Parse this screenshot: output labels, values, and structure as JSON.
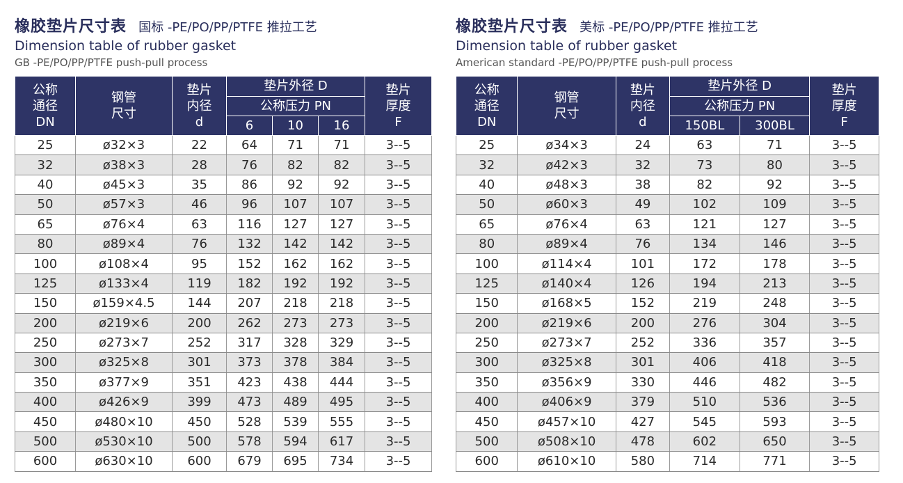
{
  "tables": [
    {
      "title": "橡胶垫片尺寸表",
      "subtitle": "国标 -PE/PO/PP/PTFE 推拉工艺",
      "title_en": "Dimension table of rubber gasket",
      "subtitle_en": "GB -PE/PO/PP/PTFE push-pull process",
      "headers": {
        "dn": [
          "公称",
          "通径",
          "DN"
        ],
        "pipe": [
          "钢管",
          "尺寸"
        ],
        "inner": [
          "垫片",
          "内径",
          "d"
        ],
        "outer": "垫片外径 D",
        "pressure": "公称压力 PN",
        "pressure_cols": [
          "6",
          "10",
          "16"
        ],
        "thick": [
          "垫片",
          "厚度",
          "F"
        ]
      },
      "rows": [
        [
          "25",
          "ø32×3",
          "22",
          "64",
          "71",
          "71",
          "3--5"
        ],
        [
          "32",
          "ø38×3",
          "28",
          "76",
          "82",
          "82",
          "3--5"
        ],
        [
          "40",
          "ø45×3",
          "35",
          "86",
          "92",
          "92",
          "3--5"
        ],
        [
          "50",
          "ø57×3",
          "46",
          "96",
          "107",
          "107",
          "3--5"
        ],
        [
          "65",
          "ø76×4",
          "63",
          "116",
          "127",
          "127",
          "3--5"
        ],
        [
          "80",
          "ø89×4",
          "76",
          "132",
          "142",
          "142",
          "3--5"
        ],
        [
          "100",
          "ø108×4",
          "95",
          "152",
          "162",
          "162",
          "3--5"
        ],
        [
          "125",
          "ø133×4",
          "119",
          "182",
          "192",
          "192",
          "3--5"
        ],
        [
          "150",
          "ø159×4.5",
          "144",
          "207",
          "218",
          "218",
          "3--5"
        ],
        [
          "200",
          "ø219×6",
          "200",
          "262",
          "273",
          "273",
          "3--5"
        ],
        [
          "250",
          "ø273×7",
          "252",
          "317",
          "328",
          "329",
          "3--5"
        ],
        [
          "300",
          "ø325×8",
          "301",
          "373",
          "378",
          "384",
          "3--5"
        ],
        [
          "350",
          "ø377×9",
          "351",
          "423",
          "438",
          "444",
          "3--5"
        ],
        [
          "400",
          "ø426×9",
          "399",
          "473",
          "489",
          "495",
          "3--5"
        ],
        [
          "450",
          "ø480×10",
          "450",
          "528",
          "539",
          "555",
          "3--5"
        ],
        [
          "500",
          "ø530×10",
          "500",
          "578",
          "594",
          "617",
          "3--5"
        ],
        [
          "600",
          "ø630×10",
          "600",
          "679",
          "695",
          "734",
          "3--5"
        ]
      ]
    },
    {
      "title": "橡胶垫片尺寸表",
      "subtitle": "美标 -PE/PO/PP/PTFE 推拉工艺",
      "title_en": "Dimension table of rubber gasket",
      "subtitle_en": "American standard -PE/PO/PP/PTFE push-pull process",
      "headers": {
        "dn": [
          "公称",
          "通径",
          "DN"
        ],
        "pipe": [
          "钢管",
          "尺寸"
        ],
        "inner": [
          "垫片",
          "内径",
          "d"
        ],
        "outer": "垫片外径 D",
        "pressure": "公称压力 PN",
        "pressure_cols": [
          "150BL",
          "300BL"
        ],
        "thick": [
          "垫片",
          "厚度",
          "F"
        ]
      },
      "rows": [
        [
          "25",
          "ø34×3",
          "24",
          "63",
          "71",
          "3--5"
        ],
        [
          "32",
          "ø42×3",
          "32",
          "73",
          "80",
          "3--5"
        ],
        [
          "40",
          "ø48×3",
          "38",
          "82",
          "92",
          "3--5"
        ],
        [
          "50",
          "ø60×3",
          "49",
          "102",
          "109",
          "3--5"
        ],
        [
          "65",
          "ø76×4",
          "63",
          "121",
          "127",
          "3--5"
        ],
        [
          "80",
          "ø89×4",
          "76",
          "134",
          "146",
          "3--5"
        ],
        [
          "100",
          "ø114×4",
          "101",
          "172",
          "178",
          "3--5"
        ],
        [
          "125",
          "ø140×4",
          "126",
          "194",
          "213",
          "3--5"
        ],
        [
          "150",
          "ø168×5",
          "152",
          "219",
          "248",
          "3--5"
        ],
        [
          "200",
          "ø219×6",
          "200",
          "276",
          "304",
          "3--5"
        ],
        [
          "250",
          "ø273×7",
          "252",
          "336",
          "357",
          "3--5"
        ],
        [
          "300",
          "ø325×8",
          "301",
          "406",
          "418",
          "3--5"
        ],
        [
          "350",
          "ø356×9",
          "330",
          "446",
          "482",
          "3--5"
        ],
        [
          "400",
          "ø406×9",
          "379",
          "510",
          "536",
          "3--5"
        ],
        [
          "450",
          "ø457×10",
          "427",
          "545",
          "593",
          "3--5"
        ],
        [
          "500",
          "ø508×10",
          "478",
          "602",
          "650",
          "3--5"
        ],
        [
          "600",
          "ø610×10",
          "580",
          "714",
          "771",
          "3--5"
        ]
      ]
    }
  ]
}
